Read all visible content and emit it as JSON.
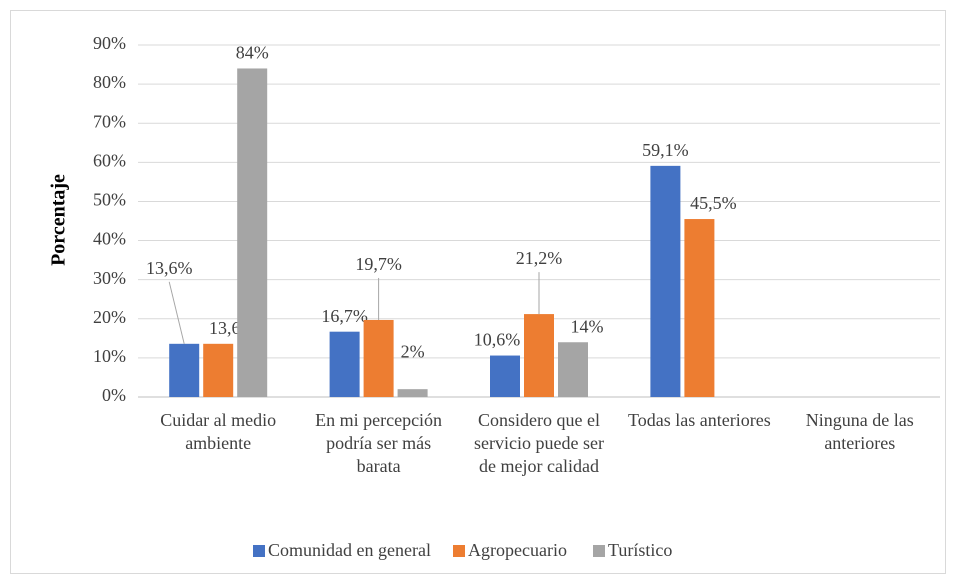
{
  "chart_data": {
    "type": "bar",
    "y_label": "Porcentaje",
    "categories": [
      "Cuidar al medio ambiente",
      "En mi percepción podría ser más barata",
      "Considero que el servicio puede ser de mejor calidad",
      "Todas las anteriores",
      "Ninguna de las anteriores"
    ],
    "series": [
      {
        "name": "Comunidad en general",
        "color": "#4472c4",
        "values": [
          13.6,
          16.7,
          10.6,
          59.1,
          null
        ],
        "value_labels": [
          "13,6%",
          "16,7%",
          "10,6%",
          "59,1%",
          null
        ]
      },
      {
        "name": "Agropecuario",
        "color": "#ed7d31",
        "values": [
          13.6,
          19.7,
          21.2,
          45.5,
          null
        ],
        "value_labels": [
          "13,6%",
          "19,7%",
          "21,2%",
          "45,5%",
          null
        ]
      },
      {
        "name": "Turístico",
        "color": "#a5a5a5",
        "values": [
          84,
          2,
          14,
          null,
          null
        ],
        "value_labels": [
          "84%",
          "2%",
          "14%",
          null,
          null
        ]
      }
    ],
    "ylim": [
      0,
      90
    ],
    "yticks": [
      {
        "value": 0,
        "label": "0%"
      },
      {
        "value": 10,
        "label": "10%"
      },
      {
        "value": 20,
        "label": "20%"
      },
      {
        "value": 30,
        "label": "30%"
      },
      {
        "value": 40,
        "label": "40%"
      },
      {
        "value": 50,
        "label": "50%"
      },
      {
        "value": 60,
        "label": "60%"
      },
      {
        "value": 70,
        "label": "70%"
      },
      {
        "value": 80,
        "label": "80%"
      },
      {
        "value": 90,
        "label": "90%"
      }
    ],
    "grid": true,
    "legend": "bottom"
  }
}
